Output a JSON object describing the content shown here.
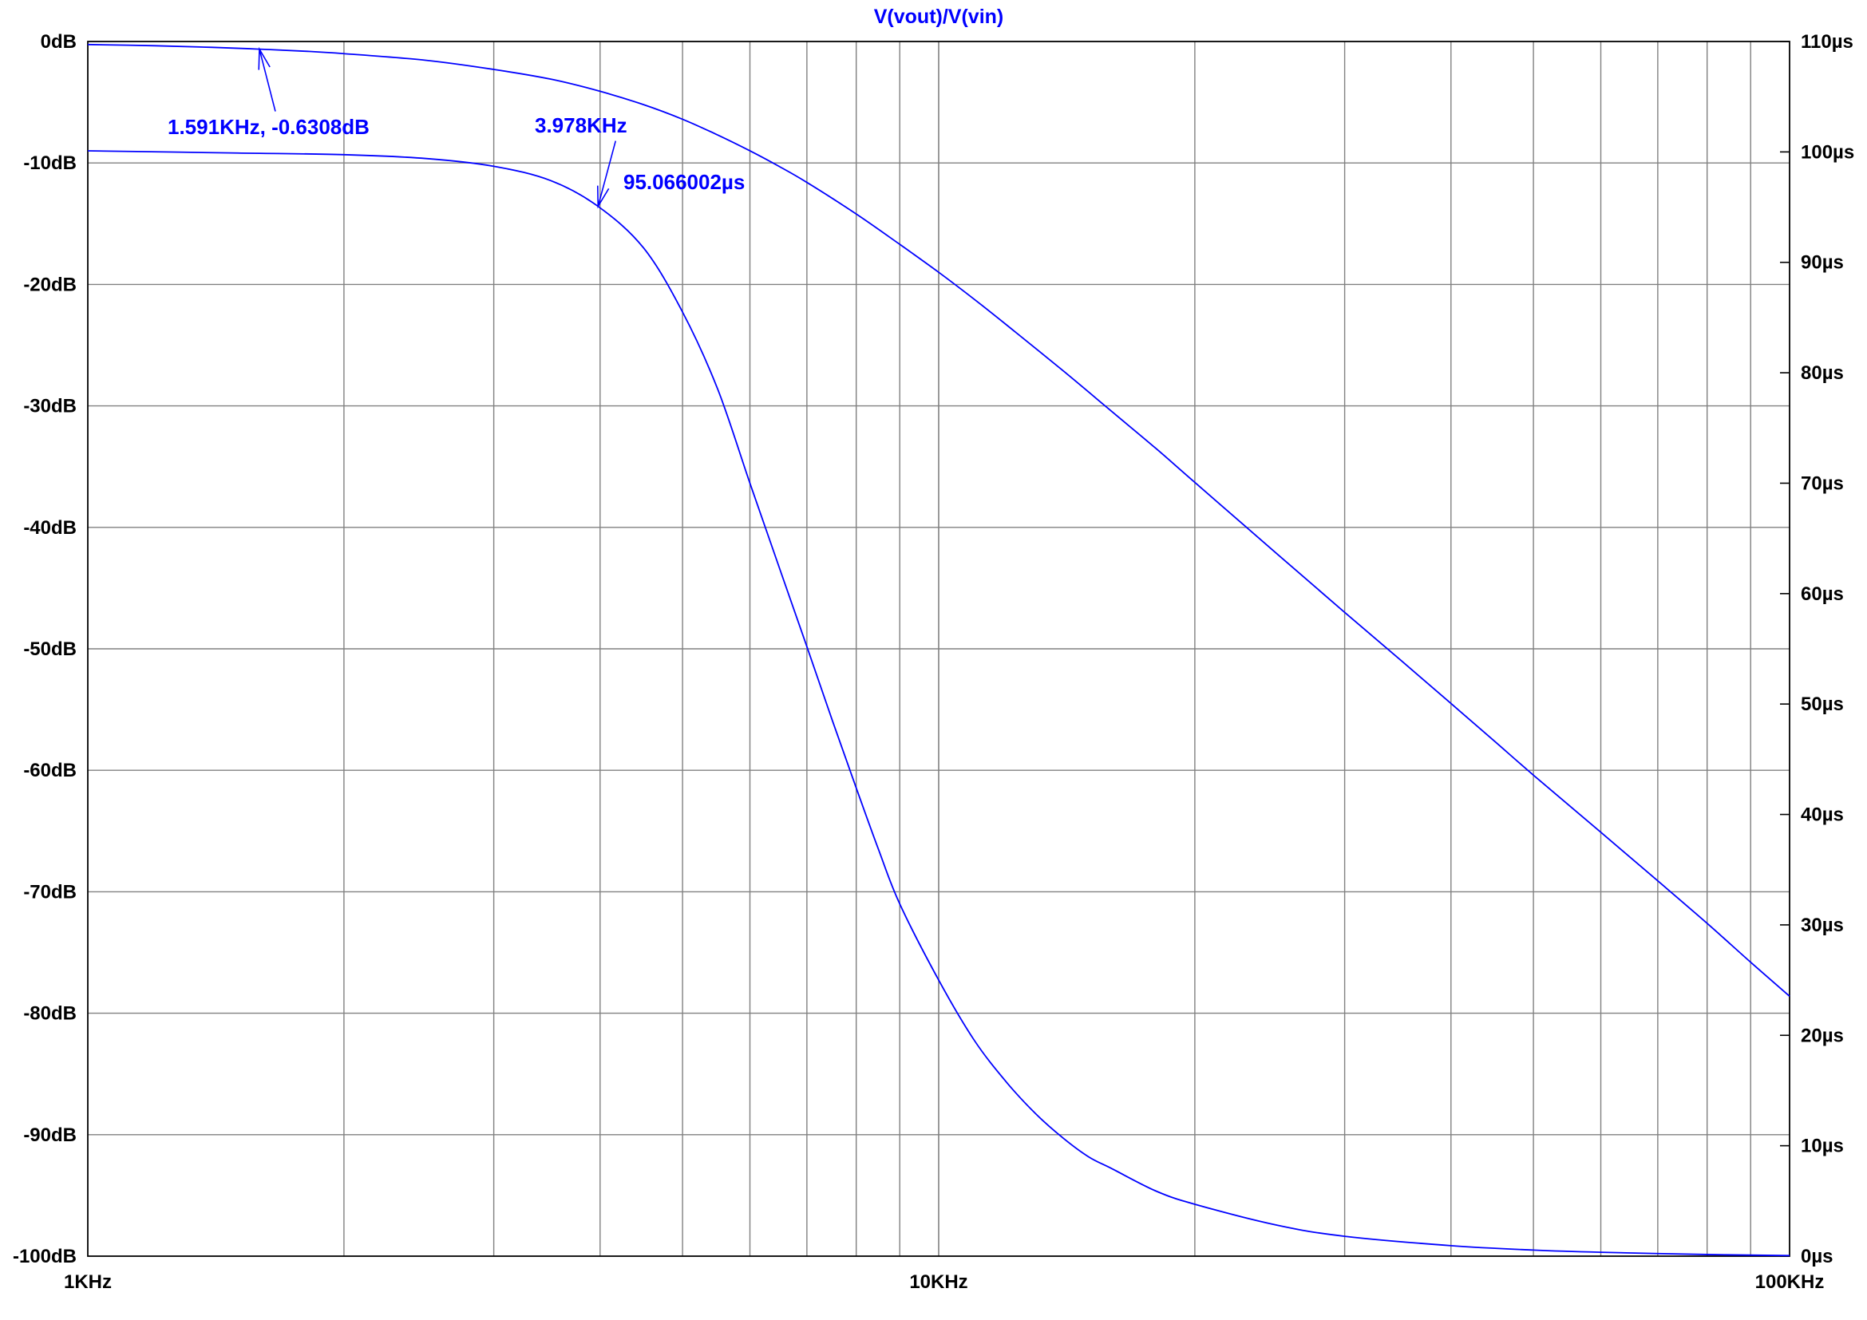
{
  "colors": {
    "background": "#ffffff",
    "grid": "#808080",
    "axis": "#000000",
    "trace": "#0000ff",
    "text": "#000000"
  },
  "chart_data": {
    "type": "line",
    "title": "V(vout)/V(vin)",
    "xlabel": "",
    "ylabel": "",
    "xscale": "log",
    "xlim": [
      1000,
      100000
    ],
    "ylim": [
      -100,
      0
    ],
    "y2lim": [
      0,
      110
    ],
    "grid": true,
    "x_ticks": [
      {
        "value": 1000,
        "label": "1KHz"
      },
      {
        "value": 10000,
        "label": "10KHz"
      },
      {
        "value": 100000,
        "label": "100KHz"
      }
    ],
    "y_ticks": [
      {
        "value": 0,
        "label": "0dB"
      },
      {
        "value": -10,
        "label": "-10dB"
      },
      {
        "value": -20,
        "label": "-20dB"
      },
      {
        "value": -30,
        "label": "-30dB"
      },
      {
        "value": -40,
        "label": "-40dB"
      },
      {
        "value": -50,
        "label": "-50dB"
      },
      {
        "value": -60,
        "label": "-60dB"
      },
      {
        "value": -70,
        "label": "-70dB"
      },
      {
        "value": -80,
        "label": "-80dB"
      },
      {
        "value": -90,
        "label": "-90dB"
      },
      {
        "value": -100,
        "label": "-100dB"
      }
    ],
    "y2_ticks": [
      {
        "value": 110,
        "label": "110µs"
      },
      {
        "value": 100,
        "label": "100µs"
      },
      {
        "value": 90,
        "label": "90µs"
      },
      {
        "value": 80,
        "label": "80µs"
      },
      {
        "value": 70,
        "label": "70µs"
      },
      {
        "value": 60,
        "label": "60µs"
      },
      {
        "value": 50,
        "label": "50µs"
      },
      {
        "value": 40,
        "label": "40µs"
      },
      {
        "value": 30,
        "label": "30µs"
      },
      {
        "value": 20,
        "label": "20µs"
      },
      {
        "value": 10,
        "label": "10µs"
      },
      {
        "value": 0,
        "label": "0µs"
      }
    ],
    "series": [
      {
        "axis": "left",
        "unit": "dB",
        "x": [
          1000,
          1200,
          1400,
          1591,
          1800,
          2000,
          2500,
          3000,
          3500,
          4000,
          4500,
          5000,
          5500,
          6000,
          6500,
          7000,
          8000,
          9000,
          10000,
          11000,
          12000,
          14000,
          16000,
          18000,
          20000,
          25000,
          30000,
          35000,
          40000,
          45000,
          50000,
          60000,
          70000,
          80000,
          90000,
          100000
        ],
        "y": [
          -0.25,
          -0.35,
          -0.48,
          -0.63,
          -0.8,
          -1.0,
          -1.55,
          -2.3,
          -3.1,
          -4.1,
          -5.2,
          -6.4,
          -7.7,
          -9.0,
          -10.3,
          -11.6,
          -14.2,
          -16.7,
          -19.0,
          -21.2,
          -23.3,
          -27.1,
          -30.5,
          -33.5,
          -36.3,
          -42.2,
          -47.0,
          -51.0,
          -54.5,
          -57.6,
          -60.4,
          -65.1,
          -69.1,
          -72.6,
          -75.8,
          -78.6
        ]
      },
      {
        "axis": "right",
        "unit": "µs",
        "x": [
          1000,
          1500,
          2000,
          2500,
          3000,
          3500,
          3978,
          4500,
          5000,
          5500,
          6000,
          6500,
          7000,
          7500,
          8000,
          8500,
          9000,
          10000,
          11000,
          12000,
          13000,
          14000,
          15000,
          16000,
          18000,
          20000,
          25000,
          30000,
          40000,
          50000,
          60000,
          80000,
          100000
        ],
        "y": [
          100.1,
          99.9,
          99.75,
          99.4,
          98.7,
          97.4,
          95.07,
          91.3,
          85.5,
          78.5,
          70.0,
          62.3,
          55.2,
          48.5,
          42.4,
          36.8,
          31.9,
          25.0,
          19.6,
          15.8,
          12.9,
          10.7,
          9.0,
          7.9,
          5.9,
          4.7,
          2.8,
          1.8,
          0.95,
          0.55,
          0.35,
          0.15,
          0.05
        ]
      }
    ],
    "annotations": [
      {
        "text": "1.591KHz, -0.6308dB",
        "x": 1591,
        "y": -0.63,
        "axis": "left"
      },
      {
        "text": "3.978KHz",
        "x": 3978,
        "y": 95.07,
        "axis": "right"
      },
      {
        "text": "95.066002µs",
        "x": 3978,
        "y": 95.07,
        "axis": "right"
      }
    ]
  }
}
